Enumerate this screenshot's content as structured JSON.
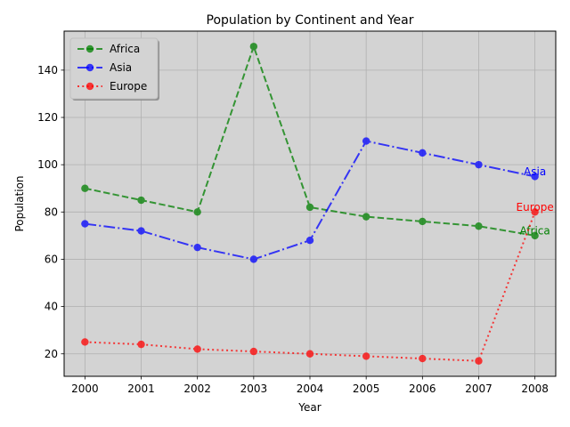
{
  "chart_data": {
    "type": "line",
    "title": "Population by Continent and Year",
    "xlabel": "Year",
    "ylabel": "Population",
    "x": [
      2000,
      2001,
      2002,
      2003,
      2004,
      2005,
      2006,
      2007,
      2008
    ],
    "xlim": [
      1999.63,
      2008.37
    ],
    "ylim": [
      10.5,
      156.5
    ],
    "yticks": [
      20,
      40,
      60,
      80,
      100,
      120,
      140
    ],
    "grid": true,
    "background": "#d3d3d3",
    "legend": "top-left",
    "series": [
      {
        "name": "Africa",
        "color": "#008000",
        "linestyle": "dashed",
        "values": [
          90,
          85,
          80,
          150,
          82,
          78,
          76,
          74,
          70
        ],
        "end_label": "Africa"
      },
      {
        "name": "Asia",
        "color": "#0000ff",
        "linestyle": "dashdot",
        "values": [
          75,
          72,
          65,
          60,
          68,
          110,
          105,
          100,
          95
        ],
        "end_label": "Asia"
      },
      {
        "name": "Europe",
        "color": "#ff0000",
        "linestyle": "dotted",
        "values": [
          25,
          24,
          22,
          21,
          20,
          19,
          18,
          17,
          80
        ],
        "end_label": "Europe"
      }
    ]
  }
}
